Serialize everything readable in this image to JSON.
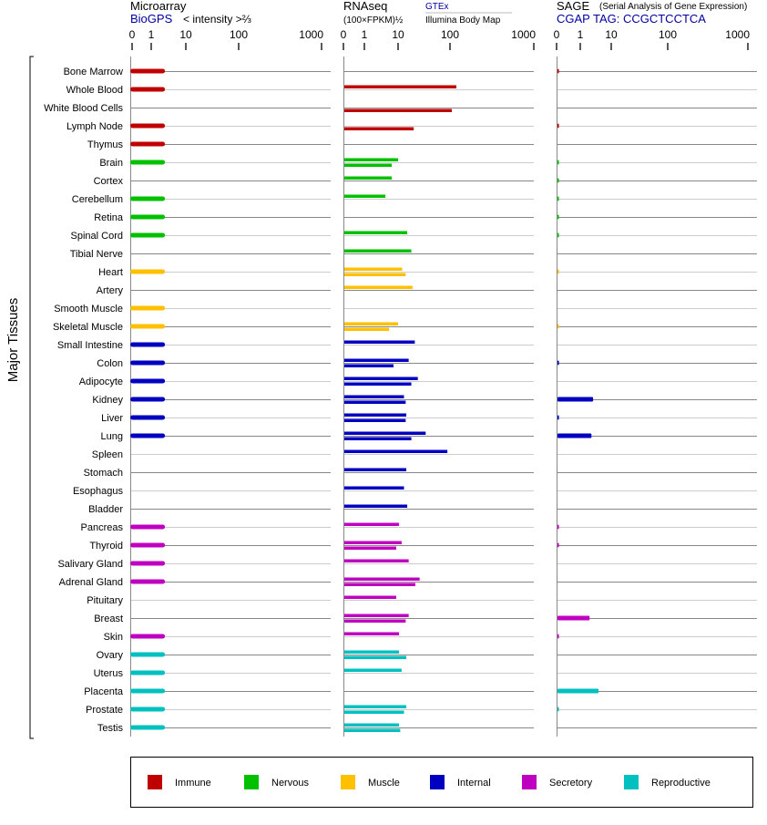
{
  "chart_data": {
    "type": "bar",
    "y_axis_label": "Major Tissues",
    "categories_legend": [
      {
        "name": "Immune",
        "color": "#c00000"
      },
      {
        "name": "Nervous",
        "color": "#00c000"
      },
      {
        "name": "Muscle",
        "color": "#ffc000"
      },
      {
        "name": "Internal",
        "color": "#0000c0"
      },
      {
        "name": "Secretory",
        "color": "#c000c0"
      },
      {
        "name": "Reproductive",
        "color": "#00c0c0"
      }
    ],
    "panels": [
      {
        "title": "Microarray",
        "source": "BioGPS",
        "subtitle": "< intensity >⅔",
        "ticks": [
          0,
          1,
          10,
          100,
          1000
        ]
      },
      {
        "title": "RNAseq",
        "subtitle": "(100×FPKM)½",
        "source_top": "GTEx",
        "source_bottom": "Illumina Body Map",
        "ticks": [
          0,
          1,
          10,
          100,
          1000
        ]
      },
      {
        "title": "SAGE",
        "note": "(Serial Analysis of Gene Expression)",
        "source": "CGAP TAG: CCGCTCCTCA",
        "ticks": [
          0,
          1,
          10,
          100,
          1000
        ]
      }
    ],
    "tissues": [
      {
        "name": "Bone Marrow",
        "cat": 0,
        "micro": 2.5,
        "gtex": null,
        "illumina": null,
        "sage": 0.1
      },
      {
        "name": "Whole Blood",
        "cat": 0,
        "micro": 2.5,
        "gtex": 119,
        "illumina": null,
        "sage": null
      },
      {
        "name": "White Blood Cells",
        "cat": 0,
        "micro": null,
        "gtex": null,
        "illumina": 105,
        "sage": null
      },
      {
        "name": "Lymph Node",
        "cat": 0,
        "micro": 2.5,
        "gtex": null,
        "illumina": 20,
        "sage": 0.1
      },
      {
        "name": "Thymus",
        "cat": 0,
        "micro": 2.5,
        "gtex": null,
        "illumina": null,
        "sage": null
      },
      {
        "name": "Brain",
        "cat": 1,
        "micro": 2.5,
        "gtex": 10,
        "illumina": 6.5,
        "sage": 0.1
      },
      {
        "name": "Cortex",
        "cat": 1,
        "micro": null,
        "gtex": 6.5,
        "illumina": null,
        "sage": 0.1
      },
      {
        "name": "Cerebellum",
        "cat": 1,
        "micro": 2.5,
        "gtex": 4.2,
        "illumina": null,
        "sage": 0.1
      },
      {
        "name": "Retina",
        "cat": 1,
        "micro": 2.5,
        "gtex": null,
        "illumina": null,
        "sage": 0.1
      },
      {
        "name": "Spinal Cord",
        "cat": 1,
        "micro": 2.5,
        "gtex": 15,
        "illumina": null,
        "sage": 0.1
      },
      {
        "name": "Tibial Nerve",
        "cat": 1,
        "micro": null,
        "gtex": 18,
        "illumina": null,
        "sage": null
      },
      {
        "name": "Heart",
        "cat": 2,
        "micro": 2.5,
        "gtex": 12,
        "illumina": 14,
        "sage": 0.1
      },
      {
        "name": "Artery",
        "cat": 2,
        "micro": null,
        "gtex": 19,
        "illumina": null,
        "sage": null
      },
      {
        "name": "Smooth Muscle",
        "cat": 2,
        "micro": 2.5,
        "gtex": null,
        "illumina": null,
        "sage": null
      },
      {
        "name": "Skeletal Muscle",
        "cat": 2,
        "micro": 2.5,
        "gtex": 10,
        "illumina": 5.4,
        "sage": 0.1
      },
      {
        "name": "Small Intestine",
        "cat": 3,
        "micro": 2.5,
        "gtex": 21,
        "illumina": null,
        "sage": null
      },
      {
        "name": "Colon",
        "cat": 3,
        "micro": 2.5,
        "gtex": 16,
        "illumina": 7.3,
        "sage": 0.1
      },
      {
        "name": "Adipocyte",
        "cat": 3,
        "micro": 2.5,
        "gtex": 24,
        "illumina": 18,
        "sage": null
      },
      {
        "name": "Kidney",
        "cat": 3,
        "micro": 2.5,
        "gtex": 13,
        "illumina": 14,
        "sage": 2.6
      },
      {
        "name": "Liver",
        "cat": 3,
        "micro": 2.5,
        "gtex": 14.4,
        "illumina": 14,
        "sage": 0.1
      },
      {
        "name": "Lung",
        "cat": 3,
        "micro": 2.5,
        "gtex": 34,
        "illumina": 18,
        "sage": 2.3
      },
      {
        "name": "Spleen",
        "cat": 3,
        "micro": null,
        "gtex": 89,
        "illumina": null,
        "sage": null
      },
      {
        "name": "Stomach",
        "cat": 3,
        "micro": null,
        "gtex": 14.4,
        "illumina": null,
        "sage": null
      },
      {
        "name": "Esophagus",
        "cat": 3,
        "micro": null,
        "gtex": 13,
        "illumina": null,
        "sage": null
      },
      {
        "name": "Bladder",
        "cat": 3,
        "micro": null,
        "gtex": 15,
        "illumina": null,
        "sage": null
      },
      {
        "name": "Pancreas",
        "cat": 4,
        "micro": 2.5,
        "gtex": 10.4,
        "illumina": null,
        "sage": 0.1
      },
      {
        "name": "Thyroid",
        "cat": 4,
        "micro": 2.5,
        "gtex": 11.7,
        "illumina": 8.8,
        "sage": 0.1
      },
      {
        "name": "Salivary Gland",
        "cat": 4,
        "micro": 2.5,
        "gtex": 16,
        "illumina": null,
        "sage": null
      },
      {
        "name": "Adrenal Gland",
        "cat": 4,
        "micro": 2.5,
        "gtex": 26,
        "illumina": 21.5,
        "sage": null
      },
      {
        "name": "Pituitary",
        "cat": 4,
        "micro": null,
        "gtex": 8.8,
        "illumina": null,
        "sage": null
      },
      {
        "name": "Breast",
        "cat": 4,
        "micro": null,
        "gtex": 16,
        "illumina": 14,
        "sage": 2.0
      },
      {
        "name": "Skin",
        "cat": 4,
        "micro": 2.5,
        "gtex": 10.4,
        "illumina": null,
        "sage": 0.1
      },
      {
        "name": "Ovary",
        "cat": 5,
        "micro": 2.5,
        "gtex": 10.4,
        "illumina": 14.4,
        "sage": null
      },
      {
        "name": "Uterus",
        "cat": 5,
        "micro": 2.5,
        "gtex": 11.7,
        "illumina": null,
        "sage": null
      },
      {
        "name": "Placenta",
        "cat": 5,
        "micro": 2.5,
        "gtex": null,
        "illumina": null,
        "sage": 3.9
      },
      {
        "name": "Prostate",
        "cat": 5,
        "micro": 2.5,
        "gtex": 14.4,
        "illumina": 13,
        "sage": 0.1
      },
      {
        "name": "Testis",
        "cat": 5,
        "micro": 2.5,
        "gtex": 10.4,
        "illumina": 11,
        "sage": null
      }
    ]
  }
}
